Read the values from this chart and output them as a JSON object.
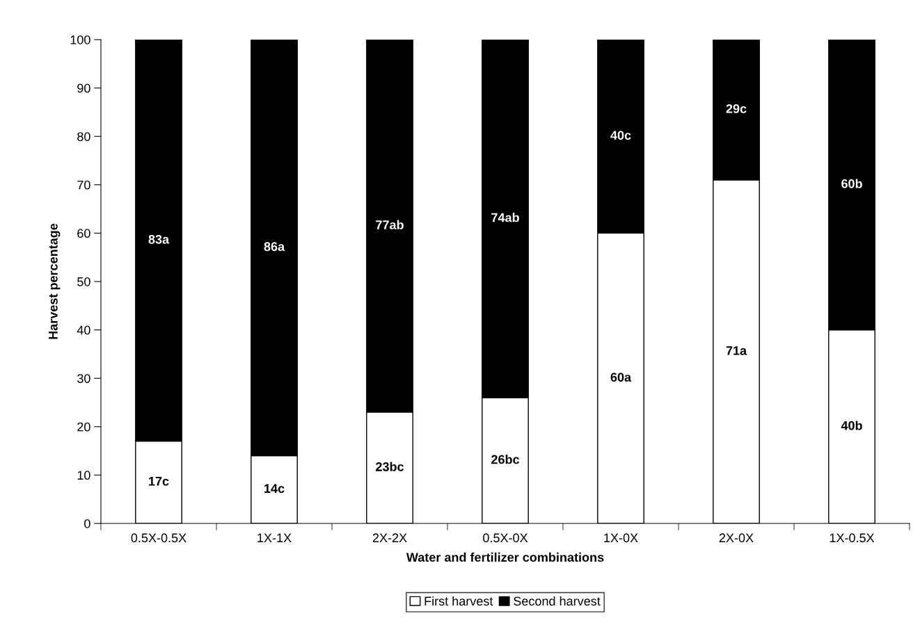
{
  "chart_data": {
    "type": "bar",
    "stacked": true,
    "categories": [
      "0.5X-0.5X",
      "1X-1X",
      "2X-2X",
      "0.5X-0X",
      "1X-0X",
      "2X-0X",
      "1X-0.5X"
    ],
    "series": [
      {
        "name": "First harvest",
        "color": "#ffffff",
        "values": [
          17,
          14,
          23,
          26,
          60,
          71,
          40
        ],
        "value_labels": [
          "17c",
          "14c",
          "23bc",
          "26bc",
          "60a",
          "71a",
          "40b"
        ]
      },
      {
        "name": "Second harvest",
        "color": "#000000",
        "values": [
          83,
          86,
          77,
          74,
          40,
          29,
          60
        ],
        "value_labels": [
          "83a",
          "86a",
          "77ab",
          "74ab",
          "40c",
          "29c",
          "60b"
        ]
      }
    ],
    "xlabel": "Water and fertilizer combinations",
    "ylabel": "Harvest percentage",
    "ylim": [
      0,
      100
    ],
    "yticks": [
      0,
      10,
      20,
      30,
      40,
      50,
      60,
      70,
      80,
      90,
      100
    ],
    "grid": false,
    "legend": "bottom"
  }
}
